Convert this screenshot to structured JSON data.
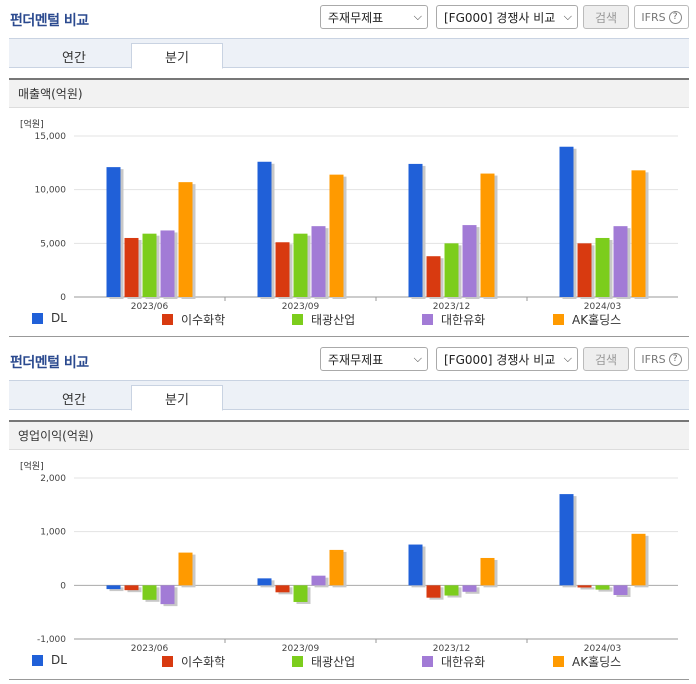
{
  "sections": [
    {
      "title": "펀더멘털 비교",
      "select1": "주재무제표",
      "select2": "[FG000] 경쟁사 비교",
      "search_label": "검색",
      "ifrs_label": "IFRS",
      "ifrs_help": "?",
      "tabs": [
        "연간",
        "분기"
      ],
      "active_tab": 1,
      "chart_title": "매출액(억원)",
      "unit_label": "[억원]"
    },
    {
      "title": "펀더멘털 비교",
      "select1": "주재무제표",
      "select2": "[FG000] 경쟁사 비교",
      "search_label": "검색",
      "ifrs_label": "IFRS",
      "ifrs_help": "?",
      "tabs": [
        "연간",
        "분기"
      ],
      "active_tab": 1,
      "chart_title": "영업이익(억원)",
      "unit_label": "[억원]"
    }
  ],
  "chart_data": [
    {
      "type": "bar",
      "title": "매출액(억원)",
      "ylabel": "[억원]",
      "categories": [
        "2023/06",
        "2023/09",
        "2023/12",
        "2024/03"
      ],
      "ylim": [
        0,
        15000
      ],
      "yticks": [
        0,
        5000,
        10000,
        15000
      ],
      "ytick_labels": [
        "0",
        "5,000",
        "10,000",
        "15,000"
      ],
      "grid": true,
      "legend": "bottom",
      "series": [
        {
          "name": "DL",
          "color": "#2060d8",
          "values": [
            12100,
            12600,
            12400,
            14000
          ]
        },
        {
          "name": "이수화학",
          "color": "#d83a10",
          "values": [
            5500,
            5100,
            3800,
            5000
          ]
        },
        {
          "name": "태광산업",
          "color": "#7ccd1c",
          "values": [
            5900,
            5900,
            5000,
            5500
          ]
        },
        {
          "name": "대한유화",
          "color": "#a27bd6",
          "values": [
            6200,
            6600,
            6700,
            6600
          ]
        },
        {
          "name": "AK홀딩스",
          "color": "#ff9a00",
          "values": [
            10700,
            11400,
            11500,
            11800
          ]
        }
      ]
    },
    {
      "type": "bar",
      "title": "영업이익(억원)",
      "ylabel": "[억원]",
      "categories": [
        "2023/06",
        "2023/09",
        "2023/12",
        "2024/03"
      ],
      "ylim": [
        -1000,
        2000
      ],
      "yticks": [
        -1000,
        0,
        1000,
        2000
      ],
      "ytick_labels": [
        "-1,000",
        "0",
        "1,000",
        "2,000"
      ],
      "grid": true,
      "legend": "bottom",
      "series": [
        {
          "name": "DL",
          "color": "#2060d8",
          "values": [
            -70,
            130,
            760,
            1700
          ]
        },
        {
          "name": "이수화학",
          "color": "#d83a10",
          "values": [
            -90,
            -130,
            -230,
            -40
          ]
        },
        {
          "name": "태광산업",
          "color": "#7ccd1c",
          "values": [
            -270,
            -310,
            -190,
            -80
          ]
        },
        {
          "name": "대한유화",
          "color": "#a27bd6",
          "values": [
            -350,
            180,
            -120,
            -180
          ]
        },
        {
          "name": "AK홀딩스",
          "color": "#ff9a00",
          "values": [
            610,
            660,
            510,
            960
          ]
        }
      ]
    }
  ]
}
